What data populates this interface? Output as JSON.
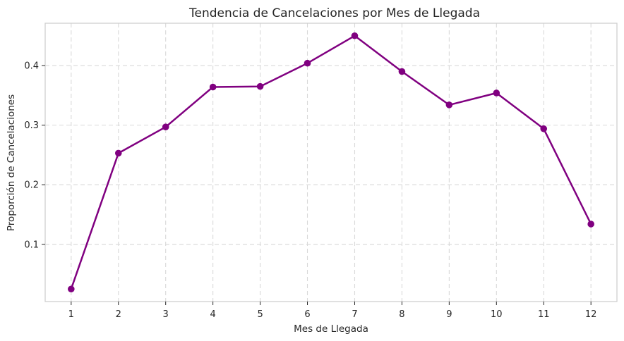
{
  "chart_data": {
    "type": "line",
    "title": "Tendencia de Cancelaciones por Mes de Llegada",
    "xlabel": "Mes de Llegada",
    "ylabel": "Proporción de Cancelaciones",
    "x": [
      1,
      2,
      3,
      4,
      5,
      6,
      7,
      8,
      9,
      10,
      11,
      12
    ],
    "series": [
      {
        "values": [
          0.025,
          0.253,
          0.297,
          0.364,
          0.365,
          0.404,
          0.45,
          0.39,
          0.334,
          0.354,
          0.294,
          0.134
        ],
        "color": "#800080",
        "marker": "circle"
      }
    ],
    "xticks": [
      "1",
      "2",
      "3",
      "4",
      "5",
      "6",
      "7",
      "8",
      "9",
      "10",
      "11",
      "12"
    ],
    "yticks": [
      0.1,
      0.2,
      0.3,
      0.4
    ],
    "yticklabels": [
      "0.1",
      "0.2",
      "0.3",
      "0.4"
    ],
    "xlim": [
      0.45,
      12.55
    ],
    "ylim": [
      0.004,
      0.471
    ],
    "grid": true,
    "legend": "none"
  }
}
